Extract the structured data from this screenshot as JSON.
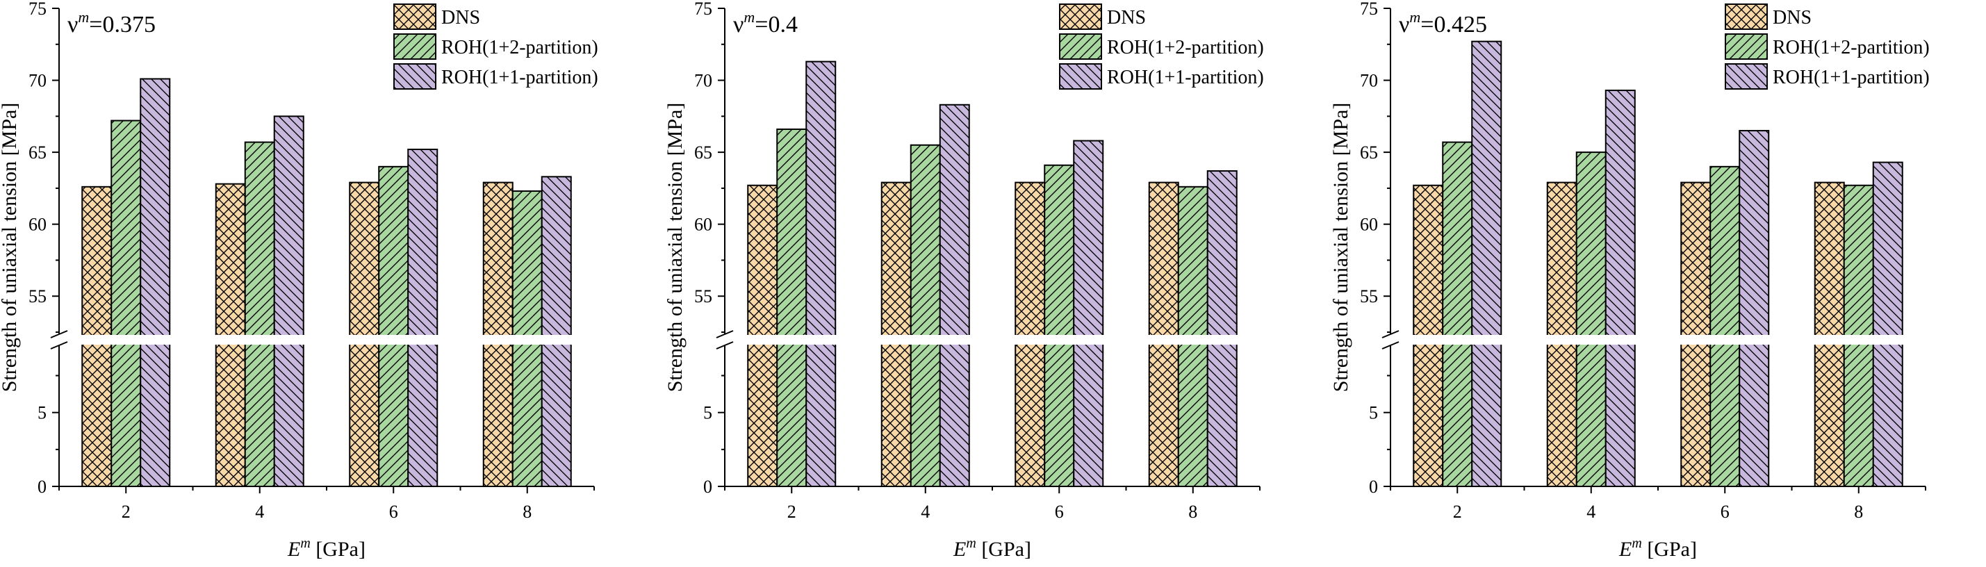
{
  "chart_data": [
    {
      "type": "bar",
      "title": "ν^m=0.375",
      "title_main": "ν",
      "title_sup": "m",
      "title_value": "=0.375",
      "xlabel_main": "E",
      "xlabel_sup": "m",
      "xlabel_unit": " [GPa]",
      "ylabel": "Strength of uniaxial tension [MPa]",
      "categories": [
        "2",
        "4",
        "6",
        "8"
      ],
      "series": [
        {
          "name": "DNS",
          "values": [
            62.6,
            62.8,
            62.9,
            62.9
          ]
        },
        {
          "name": "ROH(1+2-partition)",
          "values": [
            67.2,
            65.7,
            64.0,
            62.3
          ]
        },
        {
          "name": "ROH(1+1-partition)",
          "values": [
            70.1,
            67.5,
            65.2,
            63.3
          ]
        }
      ],
      "ylim_lower": [
        0,
        9.5
      ],
      "ylim_upper": [
        52.5,
        75
      ],
      "yticks_lower": [
        "0",
        "5"
      ],
      "yticks_upper": [
        "55",
        "60",
        "65",
        "70",
        "75"
      ],
      "legend_position": "top-right"
    },
    {
      "type": "bar",
      "title": "ν^m=0.4",
      "title_main": "ν",
      "title_sup": "m",
      "title_value": "=0.4",
      "xlabel_main": "E",
      "xlabel_sup": "m",
      "xlabel_unit": " [GPa]",
      "ylabel": "Strength of uniaxial tension [MPa]",
      "categories": [
        "2",
        "4",
        "6",
        "8"
      ],
      "series": [
        {
          "name": "DNS",
          "values": [
            62.7,
            62.9,
            62.9,
            62.9
          ]
        },
        {
          "name": "ROH(1+2-partition)",
          "values": [
            66.6,
            65.5,
            64.1,
            62.6
          ]
        },
        {
          "name": "ROH(1+1-partition)",
          "values": [
            71.3,
            68.3,
            65.8,
            63.7
          ]
        }
      ],
      "ylim_lower": [
        0,
        9.5
      ],
      "ylim_upper": [
        52.5,
        75
      ],
      "yticks_lower": [
        "0",
        "5"
      ],
      "yticks_upper": [
        "55",
        "60",
        "65",
        "70",
        "75"
      ],
      "legend_position": "top-right"
    },
    {
      "type": "bar",
      "title": "ν^m=0.425",
      "title_main": "ν",
      "title_sup": "m",
      "title_value": "=0.425",
      "xlabel_main": "E",
      "xlabel_sup": "m",
      "xlabel_unit": " [GPa]",
      "ylabel": "Strength of uniaxial tension [MPa]",
      "categories": [
        "2",
        "4",
        "6",
        "8"
      ],
      "series": [
        {
          "name": "DNS",
          "values": [
            62.7,
            62.9,
            62.9,
            62.9
          ]
        },
        {
          "name": "ROH(1+2-partition)",
          "values": [
            65.7,
            65.0,
            64.0,
            62.7
          ]
        },
        {
          "name": "ROH(1+1-partition)",
          "values": [
            72.7,
            69.3,
            66.5,
            64.3
          ]
        }
      ],
      "ylim_lower": [
        0,
        9.5
      ],
      "ylim_upper": [
        52.5,
        75
      ],
      "yticks_lower": [
        "0",
        "5"
      ],
      "yticks_upper": [
        "55",
        "60",
        "65",
        "70",
        "75"
      ],
      "legend_position": "top-right"
    }
  ],
  "colors": {
    "dns_fill": "#f9d8a8",
    "roh12_fill": "#a8d8a0",
    "roh11_fill": "#c8b8de",
    "axis": "#000000"
  }
}
